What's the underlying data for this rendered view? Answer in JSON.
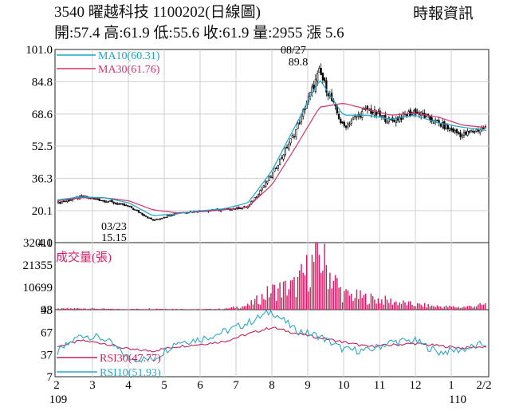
{
  "header": {
    "title": "3540  曜越科技 1100202(日線圖)",
    "source": "時報資訊",
    "quote": "開:57.4 高:61.9 低:55.6 收:61.9 量:2955 漲 5.6"
  },
  "colors": {
    "ma10": "#1ba6c9",
    "ma30": "#d5336c",
    "volume": "#d81b64",
    "rsi30": "#c0245a",
    "rsi10": "#2ea7c8",
    "candle_up": "#ffffff",
    "candle_down": "#000000",
    "grid": "#cfcfcf"
  },
  "chart_data": [
    {
      "type": "line",
      "chart": "price candlestick",
      "x_tick_labels": [
        "2",
        "3",
        "4",
        "5",
        "6",
        "7",
        "8",
        "9",
        "10",
        "11",
        "12",
        "1",
        "2/2"
      ],
      "year_labels": [
        "109",
        "110"
      ],
      "y_tick_labels": [
        "101.0",
        "84.8",
        "68.6",
        "52.5",
        "36.3",
        "20.1",
        "4.0"
      ],
      "ylim": [
        4.0,
        101.0
      ],
      "series": [
        {
          "name": "MA10(60.31)",
          "values": [
            25.5,
            27,
            26.5,
            24,
            17.5,
            18.5,
            20,
            21,
            24,
            40,
            63,
            86,
            68,
            68,
            66,
            68,
            64,
            62,
            60.3
          ]
        },
        {
          "name": "MA30(61.76)",
          "values": [
            25,
            26.5,
            26.5,
            25,
            20.5,
            19,
            19.5,
            20.5,
            22,
            33,
            52,
            72,
            74,
            71,
            68,
            69,
            67,
            63,
            61.8
          ]
        }
      ],
      "close_path": [
        24,
        27,
        25,
        22,
        15.15,
        19,
        20,
        20.5,
        22,
        38,
        60,
        89.8,
        62,
        71,
        65,
        70,
        64,
        58,
        61.9
      ],
      "annotations": [
        {
          "date": "08/27",
          "value": "89.8"
        },
        {
          "date": "03/23",
          "value": "15.15"
        }
      ]
    },
    {
      "type": "bar",
      "chart": "volume",
      "title": "成交量(張)",
      "y_tick_labels": [
        "32011",
        "21355",
        "10699",
        "43"
      ],
      "ylim": [
        43,
        32011
      ],
      "values_profile": [
        600,
        900,
        500,
        400,
        700,
        500,
        300,
        600,
        2500,
        11000,
        14000,
        32011,
        9000,
        7000,
        5000,
        3000,
        2000,
        1500,
        2955
      ]
    },
    {
      "type": "line",
      "chart": "RSI",
      "y_tick_labels": [
        "98",
        "67",
        "37",
        "7"
      ],
      "ylim": [
        7,
        98
      ],
      "series": [
        {
          "name": "RSI30(47.77)",
          "values": [
            48,
            56,
            52,
            44,
            42,
            48,
            51,
            55,
            65,
            74,
            66,
            60,
            54,
            48,
            50,
            52,
            49,
            46,
            47.8
          ]
        },
        {
          "name": "RSI10(51.93)",
          "values": [
            40,
            64,
            58,
            32,
            30,
            54,
            58,
            68,
            80,
            96,
            70,
            62,
            44,
            42,
            54,
            56,
            40,
            44,
            51.9
          ]
        }
      ]
    }
  ]
}
